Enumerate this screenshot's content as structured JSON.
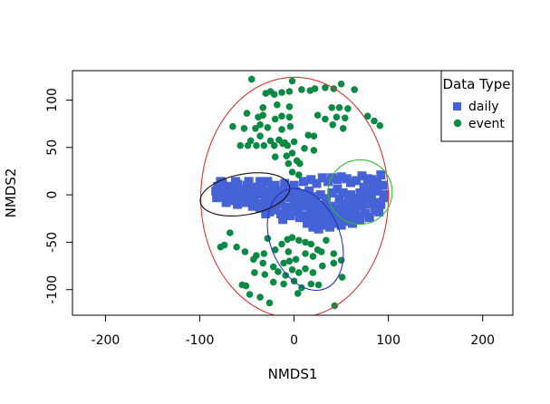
{
  "chart_data": {
    "type": "scatter",
    "title": "",
    "xlabel": "NMDS1",
    "ylabel": "NMDS2",
    "xlim": [
      -235,
      232
    ],
    "ylim": [
      -127,
      131
    ],
    "x_ticks": [
      -200,
      -100,
      0,
      100,
      200
    ],
    "y_ticks": [
      -100,
      -50,
      0,
      50,
      100
    ],
    "legend": {
      "title": "Data Type",
      "placement": "top-right",
      "entries": [
        {
          "label": "daily",
          "marker": "square",
          "color": "#4562d6"
        },
        {
          "label": "event",
          "marker": "circle",
          "color": "#0b8a44"
        }
      ]
    },
    "series": [
      {
        "name": "daily",
        "marker": "square",
        "color": "#4562d6",
        "points": [
          [
            -81,
            9
          ],
          [
            -83,
            4
          ],
          [
            -79,
            0
          ],
          [
            -82,
            -3
          ],
          [
            -76,
            12
          ],
          [
            -74,
            6
          ],
          [
            -70,
            -1
          ],
          [
            -72,
            3
          ],
          [
            -68,
            9
          ],
          [
            -66,
            4
          ],
          [
            -64,
            -2
          ],
          [
            -62,
            7
          ],
          [
            -60,
            11
          ],
          [
            -58,
            2
          ],
          [
            -56,
            -4
          ],
          [
            -54,
            6
          ],
          [
            -52,
            0
          ],
          [
            -50,
            10
          ],
          [
            -48,
            -5
          ],
          [
            -46,
            3
          ],
          [
            -44,
            8
          ],
          [
            -42,
            -2
          ],
          [
            -40,
            4
          ],
          [
            -38,
            -9
          ],
          [
            -36,
            1
          ],
          [
            -34,
            7
          ],
          [
            -32,
            -11
          ],
          [
            -30,
            -4
          ],
          [
            -28,
            3
          ],
          [
            -26,
            -18
          ],
          [
            -24,
            -8
          ],
          [
            -22,
            1
          ],
          [
            -20,
            -14
          ],
          [
            -18,
            -5
          ],
          [
            -16,
            4
          ],
          [
            -14,
            -10
          ],
          [
            -12,
            -2
          ],
          [
            -10,
            6
          ],
          [
            -8,
            -13
          ],
          [
            -6,
            -3
          ],
          [
            -4,
            5
          ],
          [
            -2,
            -15
          ],
          [
            0,
            -6
          ],
          [
            2,
            3
          ],
          [
            4,
            -18
          ],
          [
            6,
            -9
          ],
          [
            8,
            1
          ],
          [
            10,
            -22
          ],
          [
            12,
            -12
          ],
          [
            14,
            -4
          ],
          [
            16,
            -25
          ],
          [
            18,
            -16
          ],
          [
            20,
            -7
          ],
          [
            22,
            -28
          ],
          [
            24,
            -19
          ],
          [
            26,
            -11
          ],
          [
            28,
            -30
          ],
          [
            30,
            -21
          ],
          [
            32,
            -13
          ],
          [
            34,
            -27
          ],
          [
            36,
            -17
          ],
          [
            38,
            -24
          ],
          [
            40,
            -12
          ],
          [
            42,
            -20
          ],
          [
            44,
            -28
          ],
          [
            46,
            -15
          ],
          [
            48,
            -22
          ],
          [
            50,
            -10
          ],
          [
            52,
            -18
          ],
          [
            54,
            -26
          ],
          [
            56,
            -14
          ],
          [
            58,
            -20
          ],
          [
            60,
            -8
          ],
          [
            62,
            -16
          ],
          [
            64,
            -24
          ],
          [
            66,
            -12
          ],
          [
            68,
            -4
          ],
          [
            70,
            2
          ],
          [
            72,
            -6
          ],
          [
            74,
            8
          ],
          [
            76,
            0
          ],
          [
            78,
            -10
          ],
          [
            80,
            6
          ],
          [
            82,
            -2
          ],
          [
            84,
            10
          ],
          [
            86,
            -8
          ],
          [
            88,
            4
          ],
          [
            92,
            21
          ],
          [
            95,
            -3
          ],
          [
            90,
            -18
          ],
          [
            -28,
            14
          ],
          [
            -20,
            10
          ],
          [
            -10,
            12
          ],
          [
            0,
            10
          ],
          [
            10,
            14
          ],
          [
            18,
            16
          ],
          [
            24,
            12
          ],
          [
            30,
            18
          ],
          [
            36,
            14
          ],
          [
            40,
            18
          ],
          [
            46,
            16
          ],
          [
            50,
            19
          ],
          [
            56,
            17
          ],
          [
            60,
            13
          ],
          [
            66,
            15
          ],
          [
            72,
            20
          ],
          [
            78,
            17
          ],
          [
            84,
            14
          ],
          [
            88,
            12
          ],
          [
            76,
            -20
          ],
          [
            70,
            -22
          ],
          [
            64,
            -14
          ],
          [
            58,
            -4
          ],
          [
            52,
            2
          ],
          [
            46,
            6
          ],
          [
            40,
            2
          ],
          [
            34,
            -4
          ],
          [
            28,
            0
          ],
          [
            22,
            -2
          ],
          [
            16,
            4
          ],
          [
            8,
            -8
          ],
          [
            2,
            -12
          ],
          [
            -6,
            -18
          ],
          [
            -14,
            -20
          ],
          [
            -22,
            -16
          ],
          [
            -30,
            -20
          ],
          [
            -36,
            -14
          ],
          [
            -44,
            -12
          ],
          [
            -52,
            -8
          ],
          [
            -60,
            -10
          ],
          [
            -66,
            -6
          ],
          [
            -72,
            -8
          ],
          [
            -80,
            -2
          ],
          [
            -78,
            14
          ],
          [
            -62,
            14
          ],
          [
            -48,
            14
          ],
          [
            -36,
            14
          ],
          [
            -24,
            6
          ],
          [
            -12,
            -26
          ],
          [
            -4,
            -22
          ],
          [
            6,
            -24
          ],
          [
            14,
            -30
          ],
          [
            20,
            -34
          ],
          [
            26,
            -36
          ],
          [
            32,
            -32
          ],
          [
            38,
            -34
          ],
          [
            44,
            -30
          ],
          [
            50,
            -32
          ],
          [
            56,
            -28
          ],
          [
            62,
            -30
          ],
          [
            70,
            -26
          ],
          [
            80,
            -24
          ],
          [
            86,
            -16
          ],
          [
            92,
            -10
          ],
          [
            96,
            0
          ],
          [
            94,
            10
          ],
          [
            82,
            16
          ],
          [
            72,
            -12
          ],
          [
            60,
            0
          ],
          [
            48,
            -4
          ]
        ]
      },
      {
        "name": "event",
        "marker": "circle",
        "color": "#0b8a44",
        "points": [
          [
            -45,
            122
          ],
          [
            -2,
            120
          ],
          [
            22,
            112
          ],
          [
            33,
            113
          ],
          [
            42,
            112
          ],
          [
            50,
            117
          ],
          [
            64,
            111
          ],
          [
            -30,
            107
          ],
          [
            -25,
            109
          ],
          [
            -21,
            106
          ],
          [
            -13,
            108
          ],
          [
            -5,
            109
          ],
          [
            8,
            111
          ],
          [
            17,
            110
          ],
          [
            -18,
            95
          ],
          [
            -5,
            93
          ],
          [
            -33,
            92
          ],
          [
            40,
            92
          ],
          [
            48,
            92
          ],
          [
            57,
            91
          ],
          [
            -50,
            86
          ],
          [
            -38,
            82
          ],
          [
            -33,
            84
          ],
          [
            -20,
            80
          ],
          [
            -13,
            83
          ],
          [
            -5,
            82
          ],
          [
            25,
            84
          ],
          [
            33,
            80
          ],
          [
            45,
            82
          ],
          [
            54,
            81
          ],
          [
            -65,
            72
          ],
          [
            -53,
            70
          ],
          [
            -41,
            70
          ],
          [
            -36,
            74
          ],
          [
            -28,
            71
          ],
          [
            -13,
            69
          ],
          [
            -4,
            72
          ],
          [
            41,
            74
          ],
          [
            52,
            70
          ],
          [
            -46,
            57
          ],
          [
            -36,
            62
          ],
          [
            -25,
            57
          ],
          [
            -16,
            58
          ],
          [
            -10,
            55
          ],
          [
            0,
            56
          ],
          [
            15,
            63
          ],
          [
            21,
            62
          ],
          [
            -57,
            52
          ],
          [
            -49,
            52
          ],
          [
            -40,
            52
          ],
          [
            -32,
            52
          ],
          [
            -21,
            52
          ],
          [
            -12,
            54
          ],
          [
            -7,
            52
          ],
          [
            11,
            49
          ],
          [
            21,
            47
          ],
          [
            -20,
            40
          ],
          [
            -8,
            41
          ],
          [
            -2,
            44
          ],
          [
            3,
            36
          ],
          [
            -6,
            33
          ],
          [
            6,
            33
          ],
          [
            -2,
            24
          ],
          [
            5,
            21
          ],
          [
            -61,
            -55
          ],
          [
            -74,
            -53
          ],
          [
            -52,
            -60
          ],
          [
            -40,
            -64
          ],
          [
            -32,
            -62
          ],
          [
            -20,
            -58
          ],
          [
            -13,
            -52
          ],
          [
            -7,
            -47
          ],
          [
            -2,
            -45
          ],
          [
            5,
            -48
          ],
          [
            12,
            -50
          ],
          [
            18,
            -52
          ],
          [
            -43,
            -68
          ],
          [
            -33,
            -72
          ],
          [
            -22,
            -76
          ],
          [
            -11,
            -72
          ],
          [
            -5,
            -70
          ],
          [
            2,
            -68
          ],
          [
            12,
            -62
          ],
          [
            20,
            -65
          ],
          [
            25,
            -58
          ],
          [
            -42,
            -82
          ],
          [
            -31,
            -84
          ],
          [
            -17,
            -81
          ],
          [
            -9,
            -85
          ],
          [
            -2,
            -79
          ],
          [
            5,
            -82
          ],
          [
            12,
            -78
          ],
          [
            20,
            -82
          ],
          [
            30,
            -75
          ],
          [
            42,
            -72
          ],
          [
            50,
            -69
          ],
          [
            -22,
            -92
          ],
          [
            -11,
            -94
          ],
          [
            0,
            -91
          ],
          [
            8,
            -98
          ],
          [
            18,
            -94
          ],
          [
            26,
            -95
          ],
          [
            -51,
            -96
          ],
          [
            -47,
            -105
          ],
          [
            -36,
            -108
          ],
          [
            -26,
            -114
          ],
          [
            43,
            -117
          ],
          [
            85,
            78
          ],
          [
            91,
            73
          ],
          [
            -78,
            -55
          ],
          [
            -55,
            -95
          ],
          [
            4,
            -104
          ],
          [
            29,
            -60
          ],
          [
            42,
            -62
          ],
          [
            51,
            -87
          ],
          [
            -6,
            -60
          ],
          [
            -28,
            -46
          ],
          [
            34,
            -48
          ],
          [
            78,
            83
          ],
          [
            -68,
            -40
          ]
        ]
      }
    ],
    "ellipses": [
      {
        "name": "red",
        "color": "#dd3333",
        "cx": 0.5,
        "cy": -3,
        "rx": 99.5,
        "ry": 127,
        "angle": 0
      },
      {
        "name": "black",
        "color": "#111111",
        "cx": -52,
        "cy": 0.5,
        "rx": 48,
        "ry": 21.5,
        "angle": -10
      },
      {
        "name": "blue",
        "color": "#2233bb",
        "cx": 12,
        "cy": -47,
        "rx": 37,
        "ry": 56,
        "angle": -22
      },
      {
        "name": "green",
        "color": "#33bb33",
        "cx": 70,
        "cy": 3,
        "rx": 34,
        "ry": 34,
        "angle": 0
      }
    ]
  }
}
